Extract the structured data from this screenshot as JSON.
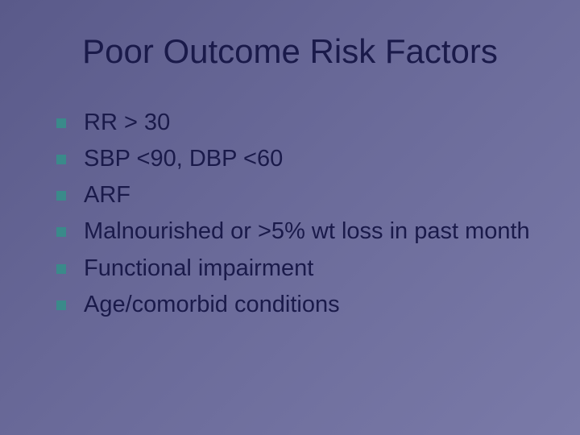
{
  "slide": {
    "title": "Poor Outcome Risk Factors",
    "bullets": [
      "RR > 30",
      "SBP <90, DBP <60",
      "ARF",
      "Malnourished or >5% wt loss in past month",
      "Functional impairment",
      "Age/comorbid conditions"
    ]
  },
  "style": {
    "background_gradient_start": "#5a5a8a",
    "background_gradient_end": "#7a7aa8",
    "title_color": "#1a1a4a",
    "title_fontsize": 42,
    "bullet_text_color": "#1a1a4a",
    "bullet_fontsize": 29,
    "bullet_marker_color": "#3a8a8a",
    "bullet_marker_size": 12,
    "font_family": "Verdana"
  }
}
